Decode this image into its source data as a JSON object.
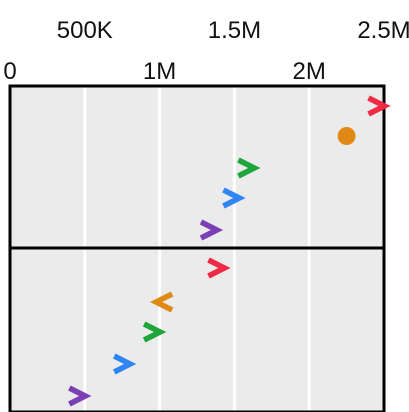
{
  "chart_data": {
    "type": "scatter",
    "title": "",
    "xlabel": "",
    "ylabel": "",
    "xlim": [
      0,
      2500000
    ],
    "grid": true,
    "x_tick_labels": [
      {
        "value": 0,
        "label": "0",
        "row": "bottom"
      },
      {
        "value": 500000,
        "label": "500K",
        "row": "top"
      },
      {
        "value": 1000000,
        "label": "1M",
        "row": "bottom"
      },
      {
        "value": 1500000,
        "label": "1.5M",
        "row": "top"
      },
      {
        "value": 2000000,
        "label": "2M",
        "row": "bottom"
      },
      {
        "value": 2500000,
        "label": "2.5M",
        "row": "top"
      }
    ],
    "panels": [
      {
        "name": "upper",
        "points": [
          {
            "x": 2450000,
            "color": "red",
            "marker": "chevron-right"
          },
          {
            "x": 2250000,
            "color": "orange",
            "marker": "circle"
          },
          {
            "x": 1580000,
            "color": "green",
            "marker": "chevron-right"
          },
          {
            "x": 1480000,
            "color": "blue",
            "marker": "chevron-right"
          },
          {
            "x": 1330000,
            "color": "purple",
            "marker": "chevron-right"
          }
        ]
      },
      {
        "name": "lower",
        "points": [
          {
            "x": 1380000,
            "color": "red",
            "marker": "chevron-right"
          },
          {
            "x": 1030000,
            "color": "orange",
            "marker": "chevron-left"
          },
          {
            "x": 950000,
            "color": "green",
            "marker": "chevron-right"
          },
          {
            "x": 750000,
            "color": "blue",
            "marker": "chevron-right"
          },
          {
            "x": 450000,
            "color": "purple",
            "marker": "chevron-right"
          }
        ]
      }
    ],
    "colors": {
      "red": "#ee2a44",
      "orange": "#e08a16",
      "green": "#1ea63a",
      "blue": "#2f86f2",
      "purple": "#7a3fb5",
      "panel_bg": "#ebebeb",
      "grid": "#ffffff",
      "frame": "#000000"
    }
  }
}
